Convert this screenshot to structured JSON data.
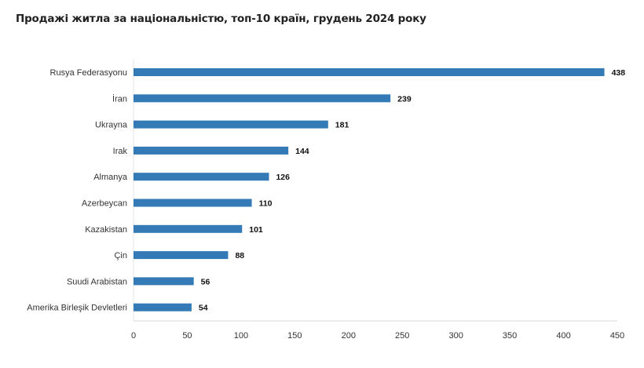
{
  "chart_data": {
    "type": "bar",
    "orientation": "horizontal",
    "title": "Продажі житла за національністю, топ-10 країн, грудень 2024 року",
    "categories": [
      "Rusya Federasyonu",
      "İran",
      "Ukrayna",
      "Irak",
      "Almanya",
      "Azerbeycan",
      "Kazakistan",
      "Çin",
      "Suudi Arabistan",
      "Amerika Birleşik Devletleri"
    ],
    "values": [
      438,
      239,
      181,
      144,
      126,
      110,
      101,
      88,
      56,
      54
    ],
    "xlim": [
      0,
      450
    ],
    "xticks": [
      0,
      50,
      100,
      150,
      200,
      250,
      300,
      350,
      400,
      450
    ],
    "xlabel": "",
    "ylabel": "",
    "grid": false,
    "legend": "none",
    "bar_color": "#337ab7"
  }
}
